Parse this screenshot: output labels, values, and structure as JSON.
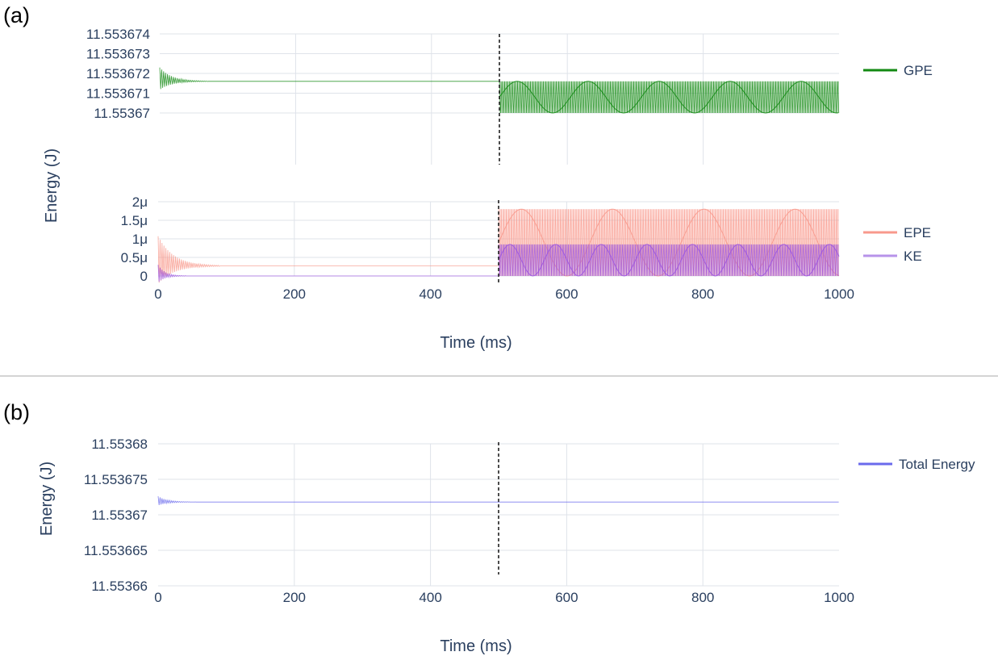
{
  "panel_labels": {
    "a": "(a)",
    "b": "(b)"
  },
  "colors": {
    "gpe": "#138a13",
    "epe": "#f8998c",
    "ke": "#9b55e0",
    "ke_legend": "#b793ea",
    "total": "#6a6aec",
    "grid": "#dfe3ea",
    "text": "#2a3f5f",
    "divider": "#aaaaaa"
  },
  "chart_data": [
    {
      "id": "a-top",
      "type": "line",
      "ylabel": "Energy (J)",
      "xlabel": "",
      "xlim": [
        0,
        1000
      ],
      "ylim": [
        11.5536695,
        11.553674
      ],
      "ytick_values": [
        11.55367,
        11.553671,
        11.553672,
        11.553673,
        11.553674
      ],
      "ytick_labels": [
        "11.55367",
        "11.553671",
        "11.553672",
        "11.553673",
        "11.553674"
      ],
      "xtick_values": [
        200,
        400,
        600,
        800
      ],
      "vline_x": 500,
      "series": [
        {
          "name": "GPE",
          "color_key": "gpe",
          "phase1": {
            "x_end": 500,
            "baseline": 11.5536716,
            "decay_amp0": 7e-07,
            "decay_end": 70
          },
          "phase2": {
            "x_start": 500,
            "x_end": 1000,
            "min": 11.55367,
            "max": 11.5536716
          }
        }
      ],
      "legend": [
        {
          "name": "GPE",
          "color_key": "gpe"
        }
      ]
    },
    {
      "id": "a-bottom",
      "type": "line",
      "ylabel": "Energy (J)",
      "xlabel": "Time (ms)",
      "xlim": [
        0,
        1000
      ],
      "ylim": [
        0,
        2e-06
      ],
      "ytick_values": [
        0,
        5e-07,
        1e-06,
        1.5e-06,
        2e-06
      ],
      "ytick_labels": [
        "0",
        "0.5μ",
        "1μ",
        "1.5μ",
        "2μ"
      ],
      "xtick_values": [
        0,
        200,
        400,
        600,
        800,
        1000
      ],
      "xtick_labels": [
        "0",
        "200",
        "400",
        "600",
        "800",
        "1000"
      ],
      "vline_x": 500,
      "series": [
        {
          "name": "EPE",
          "color_key": "epe",
          "phase1": {
            "x_end": 500,
            "baseline": 2.7e-07,
            "decay_amp0": 8e-07,
            "decay_end": 90
          },
          "phase2": {
            "x_start": 500,
            "x_end": 1000,
            "min": 0,
            "max": 1.8e-06
          }
        },
        {
          "name": "KE",
          "color_key": "ke",
          "phase1": {
            "x_end": 500,
            "baseline": 0.0,
            "decay_amp0": 3e-07,
            "decay_end": 40
          },
          "phase2": {
            "x_start": 500,
            "x_end": 1000,
            "min": 0,
            "max": 8.5e-07
          }
        }
      ],
      "legend": [
        {
          "name": "EPE",
          "color_key": "epe"
        },
        {
          "name": "KE",
          "color_key": "ke_legend"
        }
      ]
    },
    {
      "id": "b",
      "type": "line",
      "ylabel": "Energy (J)",
      "xlabel": "Time (ms)",
      "xlim": [
        0,
        1000
      ],
      "ylim": [
        11.55366,
        11.55368
      ],
      "ytick_values": [
        11.55366,
        11.553665,
        11.55367,
        11.553675,
        11.55368
      ],
      "ytick_labels": [
        "11.55366",
        "11.553665",
        "11.55367",
        "11.553675",
        "11.55368"
      ],
      "xtick_values": [
        0,
        200,
        400,
        600,
        800,
        1000
      ],
      "xtick_labels": [
        "0",
        "200",
        "400",
        "600",
        "800",
        "1000"
      ],
      "vline_x": 500,
      "series": [
        {
          "name": "Total Energy",
          "color_key": "total",
          "phase1": {
            "x_end": 1000,
            "baseline": 11.5536718,
            "decay_amp0": 8e-07,
            "decay_end": 55
          }
        }
      ],
      "legend": [
        {
          "name": "Total Energy",
          "color_key": "total"
        }
      ]
    }
  ]
}
